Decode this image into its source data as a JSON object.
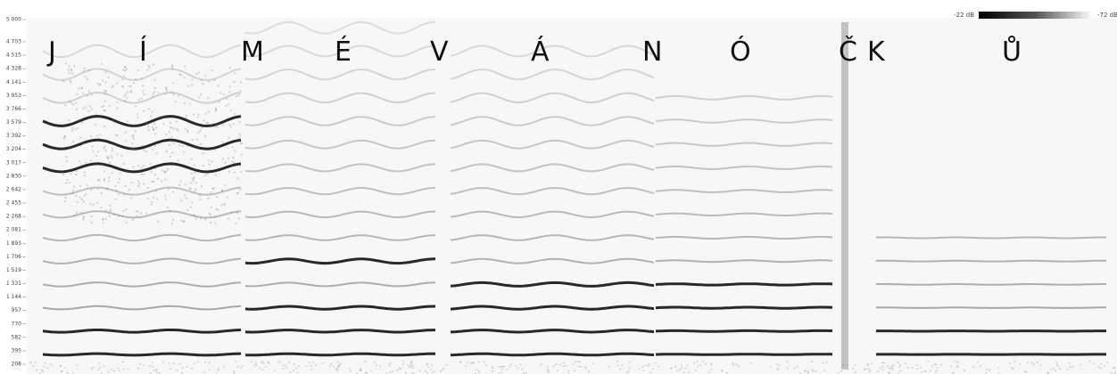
{
  "y_axis": {
    "labels": [
      "5 000",
      "4 703",
      "4 515",
      "4 328",
      "4 141",
      "3 953",
      "3 766",
      "3 579",
      "3 392",
      "3 204",
      "3 017",
      "2 830",
      "2 642",
      "2 455",
      "2 268",
      "2 081",
      "1 893",
      "1 706",
      "1 519",
      "1 331",
      "1 144",
      "957",
      "770",
      "582",
      "395",
      "208"
    ]
  },
  "syllables": [
    "J",
    "Í",
    "M",
    "É",
    "V",
    "Á",
    "N",
    "Ó",
    "Č",
    "K",
    "Ů"
  ],
  "colorbar": {
    "max_label": "-22 dB",
    "min_label": "-72 dB"
  }
}
